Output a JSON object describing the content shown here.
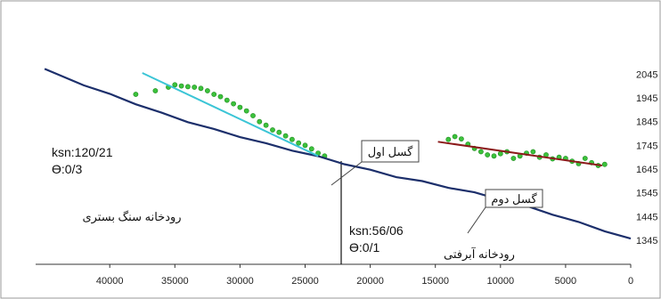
{
  "colors": {
    "river": "#1c2f6b",
    "profile_points": "#3cc23c",
    "fit_line_1": "#3bc5d6",
    "fit_line_2": "#8b1a1a",
    "callout_border": "#444444",
    "frame": "#9a9a9a"
  },
  "chart_data": {
    "type": "line",
    "title": "",
    "xlabel": "",
    "ylabel": "",
    "x_reversed": true,
    "xlim": [
      45000,
      0
    ],
    "ylim": [
      1345,
      2095
    ],
    "x_ticks": [
      "40000",
      "35000",
      "30000",
      "25000",
      "20000",
      "15000",
      "10000",
      "5000",
      "0"
    ],
    "y_ticks": [
      "2045",
      "1945",
      "1845",
      "1745",
      "1645",
      "1545",
      "1445",
      "1345"
    ],
    "grid": false,
    "legend": "none",
    "series": [
      {
        "role": "longitudinal-profile",
        "x": [
          45000,
          42000,
          40000,
          38000,
          36000,
          34000,
          32000,
          30000,
          28000,
          26000,
          24000,
          22000,
          20000,
          18000,
          16000,
          14000,
          12000,
          10000,
          8000,
          6000,
          4000,
          2000,
          0
        ],
        "y": [
          2065,
          2000,
          1960,
          1920,
          1880,
          1845,
          1812,
          1782,
          1752,
          1725,
          1697,
          1668,
          1640,
          1613,
          1592,
          1568,
          1545,
          1518,
          1488,
          1455,
          1420,
          1385,
          1350
        ]
      },
      {
        "role": "ksn-points-upper",
        "x": [
          38000,
          36500,
          35500,
          35000,
          34500,
          34000,
          33500,
          33000,
          32500,
          32000,
          31500,
          31000,
          30500,
          30000,
          29500,
          29000,
          28500,
          28000,
          27500,
          27000,
          26500,
          26000,
          25500,
          25000,
          24500,
          24000,
          23500
        ],
        "y": [
          1960,
          1975,
          1990,
          2000,
          1995,
          1992,
          1990,
          1985,
          1975,
          1960,
          1950,
          1935,
          1920,
          1905,
          1890,
          1870,
          1845,
          1830,
          1810,
          1800,
          1785,
          1770,
          1755,
          1745,
          1730,
          1712,
          1700
        ]
      },
      {
        "role": "ksn-points-lower",
        "x": [
          14000,
          13500,
          13000,
          12500,
          12000,
          11500,
          11000,
          10500,
          10000,
          9500,
          9000,
          8500,
          8000,
          7500,
          7000,
          6500,
          6000,
          5500,
          5000,
          4500,
          4000,
          3500,
          3000,
          2500,
          2000
        ],
        "y": [
          1770,
          1782,
          1772,
          1750,
          1732,
          1718,
          1705,
          1700,
          1710,
          1718,
          1690,
          1700,
          1712,
          1718,
          1695,
          1705,
          1688,
          1695,
          1690,
          1678,
          1668,
          1690,
          1672,
          1660,
          1665
        ]
      },
      {
        "role": "fit-upper",
        "x": [
          37500,
          24000
        ],
        "y": [
          2050,
          1700
        ]
      },
      {
        "role": "fit-lower",
        "x": [
          14800,
          2200
        ],
        "y": [
          1760,
          1660
        ]
      }
    ],
    "annotations": {
      "ksn1_line1": "ksn:120/21",
      "ksn1_line2": "Ө:0/3",
      "ksn2_line1": "ksn:56/06",
      "ksn2_line2": "Ө:0/1",
      "fault1": "گسل اول",
      "fault2": "گسل دوم",
      "bedrock": "رودخانه سنگ بستری",
      "alluvial": "رودخانه آبرفتی"
    }
  }
}
